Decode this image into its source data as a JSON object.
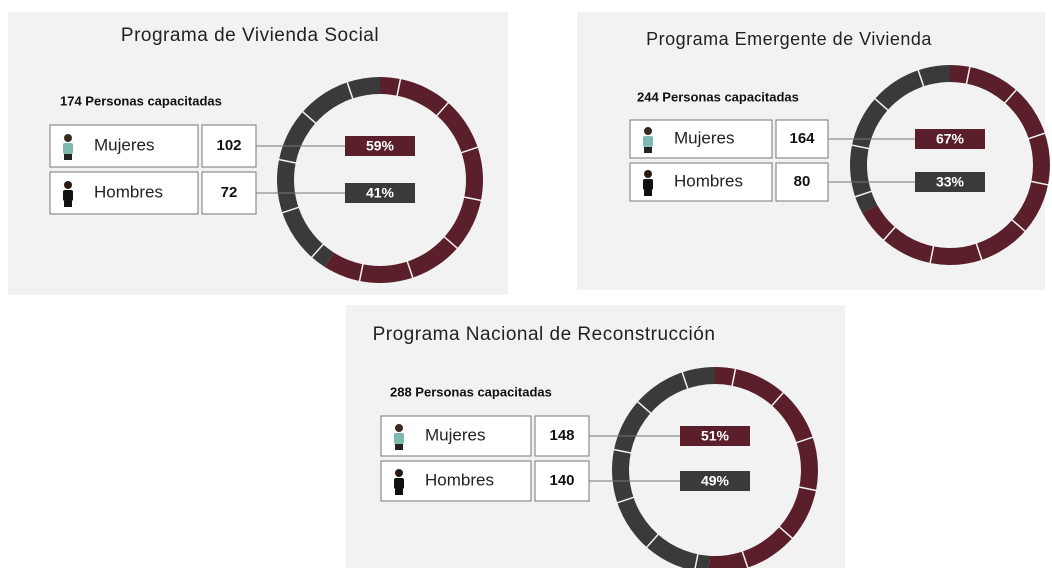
{
  "chart_data": [
    {
      "type": "donut",
      "title": "Programa de Vivienda Social",
      "subtitle": "174 Personas capacitadas",
      "categories": [
        "Mujeres",
        "Hombres"
      ],
      "counts": [
        102,
        72
      ],
      "values": [
        59,
        41
      ],
      "value_labels": [
        "59%",
        "41%"
      ],
      "colors": [
        "#5a1f2b",
        "#3a3a3a"
      ]
    },
    {
      "type": "donut",
      "title": "Programa Emergente de Vivienda",
      "subtitle": "244 Personas capacitadas",
      "categories": [
        "Mujeres",
        "Hombres"
      ],
      "counts": [
        164,
        80
      ],
      "values": [
        67,
        33
      ],
      "value_labels": [
        "67%",
        "33%"
      ],
      "colors": [
        "#5a1f2b",
        "#3a3a3a"
      ]
    },
    {
      "type": "donut",
      "title": "Programa Nacional de Reconstrucción",
      "subtitle": "288 Personas capacitadas",
      "categories": [
        "Mujeres",
        "Hombres"
      ],
      "counts": [
        148,
        140
      ],
      "values": [
        51,
        49
      ],
      "value_labels": [
        "51%",
        "49%"
      ],
      "colors": [
        "#5a1f2b",
        "#3a3a3a"
      ]
    }
  ]
}
